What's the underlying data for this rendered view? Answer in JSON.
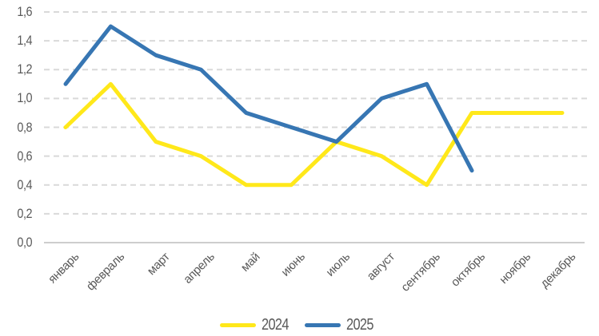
{
  "chart_data": {
    "type": "line",
    "title": "",
    "xlabel": "",
    "ylabel": "",
    "categories": [
      "январь",
      "февраль",
      "март",
      "апрель",
      "май",
      "июнь",
      "июль",
      "август",
      "сентябрь",
      "октябрь",
      "ноябрь",
      "декабрь"
    ],
    "series": [
      {
        "name": "2024",
        "color": "#FFE81A",
        "values": [
          0.8,
          1.1,
          0.7,
          0.6,
          0.4,
          0.4,
          0.7,
          0.6,
          0.4,
          0.9,
          0.9,
          0.9
        ]
      },
      {
        "name": "2025",
        "color": "#3776B3",
        "values": [
          1.1,
          1.5,
          1.3,
          1.2,
          0.9,
          0.8,
          0.7,
          1.0,
          1.1,
          0.5,
          null,
          null
        ]
      }
    ],
    "ylim": [
      0,
      1.6
    ],
    "ytick_step": 0.2,
    "ytick_labels": [
      "0,0",
      "0,2",
      "0,4",
      "0,6",
      "0,8",
      "1,0",
      "1,2",
      "1,4",
      "1,6"
    ],
    "grid": "horizontal-dashed",
    "legend_position": "bottom-center"
  },
  "colors": {
    "background": "#FFFFFF",
    "gridline": "#D9D9D9",
    "baseline": "#CDCDCD",
    "tick_text": "#595959"
  }
}
